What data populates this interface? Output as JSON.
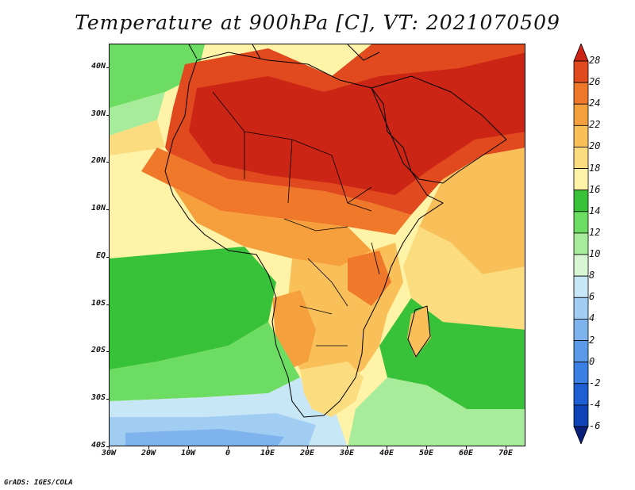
{
  "title": "Temperature at 900hPa [C], VT: 2021070509",
  "credit": "GrADS: IGES/COLA",
  "map": {
    "lat_range": [
      -40,
      45
    ],
    "lon_range": [
      -30,
      75
    ],
    "y_ticks": [
      {
        "label": "40N",
        "lat": 40
      },
      {
        "label": "30N",
        "lat": 30
      },
      {
        "label": "20N",
        "lat": 20
      },
      {
        "label": "10N",
        "lat": 10
      },
      {
        "label": "EQ",
        "lat": 0
      },
      {
        "label": "10S",
        "lat": -10
      },
      {
        "label": "20S",
        "lat": -20
      },
      {
        "label": "30S",
        "lat": -30
      },
      {
        "label": "40S",
        "lat": -40
      }
    ],
    "x_ticks": [
      {
        "label": "30W",
        "lon": -30
      },
      {
        "label": "20W",
        "lon": -20
      },
      {
        "label": "10W",
        "lon": -10
      },
      {
        "label": "0",
        "lon": 0
      },
      {
        "label": "10E",
        "lon": 10
      },
      {
        "label": "20E",
        "lon": 20
      },
      {
        "label": "30E",
        "lon": 30
      },
      {
        "label": "40E",
        "lon": 40
      },
      {
        "label": "50E",
        "lon": 50
      },
      {
        "label": "60E",
        "lon": 60
      },
      {
        "label": "70E",
        "lon": 70
      }
    ]
  },
  "colorbar": {
    "levels": [
      "-6",
      "-4",
      "-2",
      "0",
      "2",
      "4",
      "6",
      "8",
      "10",
      "12",
      "14",
      "16",
      "18",
      "20",
      "22",
      "24",
      "26",
      "28"
    ],
    "colors": [
      "#0a1f7a",
      "#1043b8",
      "#1e5fd6",
      "#3a7fe3",
      "#5a9ae8",
      "#7eb3ee",
      "#a2cdf3",
      "#c8e7f6",
      "#d8f5d4",
      "#a6ec9a",
      "#6cdd62",
      "#38c23a",
      "#fff3a8",
      "#fbdc7e",
      "#f9c05a",
      "#f5a03c",
      "#f0782a",
      "#e14a1e",
      "#cc2516"
    ]
  }
}
